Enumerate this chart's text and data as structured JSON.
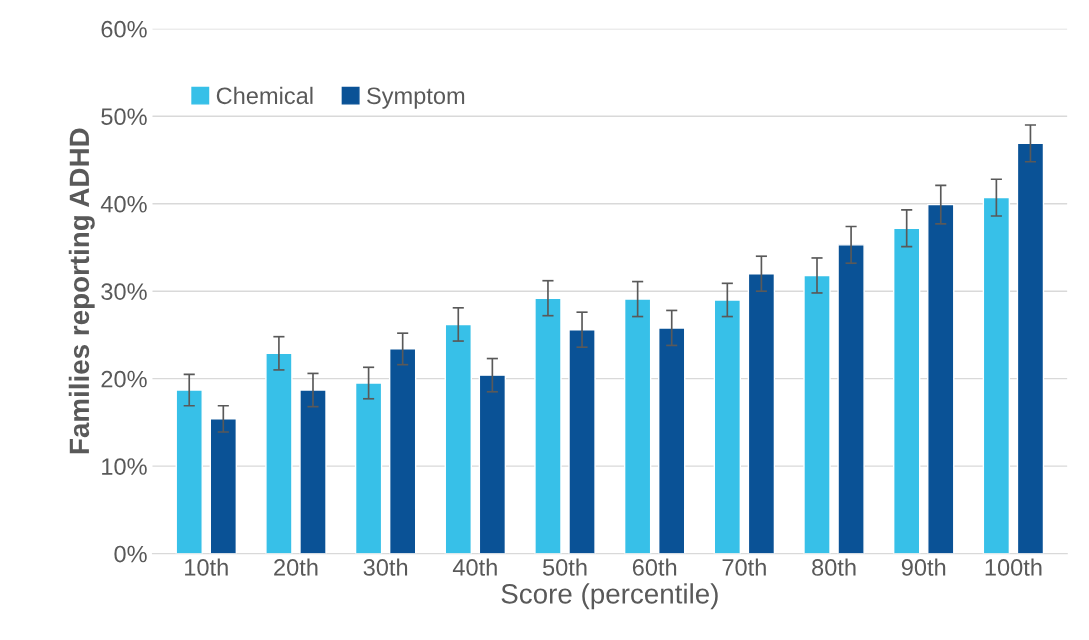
{
  "chart_data": {
    "type": "bar",
    "xlabel": "Score (percentile)",
    "ylabel": "Families reporting ADHD",
    "categories": [
      "10th",
      "20th",
      "30th",
      "40th",
      "50th",
      "60th",
      "70th",
      "80th",
      "90th",
      "100th"
    ],
    "series": [
      {
        "name": "Chemical",
        "color": "#37c0e8",
        "values": [
          18.7,
          22.9,
          19.5,
          26.2,
          29.2,
          29.1,
          29.0,
          31.8,
          37.2,
          40.7
        ],
        "errors": [
          1.8,
          1.9,
          1.8,
          1.9,
          2.0,
          2.0,
          1.9,
          2.0,
          2.1,
          2.1
        ]
      },
      {
        "name": "Symptom",
        "color": "#0a5296",
        "values": [
          15.4,
          18.7,
          23.4,
          20.4,
          25.6,
          25.8,
          32.0,
          35.3,
          39.9,
          46.9
        ],
        "errors": [
          1.5,
          1.9,
          1.8,
          1.9,
          2.0,
          2.0,
          2.0,
          2.1,
          2.2,
          2.1
        ]
      }
    ],
    "ylim": [
      0,
      60
    ],
    "yticks": [
      {
        "value": 0,
        "label": "0%"
      },
      {
        "value": 10,
        "label": "10%"
      },
      {
        "value": 20,
        "label": "20%"
      },
      {
        "value": 30,
        "label": "30%"
      },
      {
        "value": 40,
        "label": "40%"
      },
      {
        "value": 50,
        "label": "50%"
      },
      {
        "value": 60,
        "label": "60%"
      }
    ],
    "grid": "y",
    "legend": "top left"
  }
}
